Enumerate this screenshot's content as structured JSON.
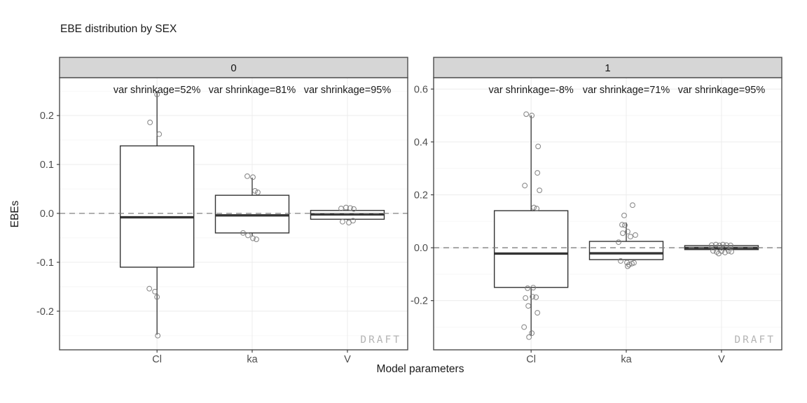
{
  "chart_data": {
    "type": "boxplot",
    "title": "EBE distribution by SEX",
    "xlabel": "Model parameters",
    "ylabel": "EBEs",
    "categories": [
      "Cl",
      "ka",
      "V"
    ],
    "grid": true,
    "legend": "none",
    "watermark": "DRAFT",
    "reference_line": {
      "y": 0,
      "style": "dashed"
    },
    "colors": {
      "strip_bg": "#d6d6d6",
      "panel_border": "#4d4d4d",
      "grid_major": "#ececec",
      "grid_minor": "#f5f5f5",
      "box_stroke": "#333333",
      "point_stroke": "#787878",
      "ref_line": "#808080",
      "tick": "#333333",
      "tick_label": "#4d4d4d",
      "draft": "#b4b4b4"
    },
    "facets": [
      {
        "label": "0",
        "ylim": [
          -0.279,
          0.2775
        ],
        "yticks": [
          {
            "v": 0.2,
            "label": "0.2"
          },
          {
            "v": 0.1,
            "label": "0.1"
          },
          {
            "v": 0.0,
            "label": "0.0"
          },
          {
            "v": -0.1,
            "label": "-0.1"
          },
          {
            "v": -0.2,
            "label": "-0.2"
          }
        ],
        "yminor": [
          0.25,
          0.15,
          0.05,
          -0.05,
          -0.15,
          -0.25
        ],
        "annotations": [
          "var shrinkage=52%",
          "var shrinkage=81%",
          "var shrinkage=95%"
        ],
        "boxes": [
          {
            "category": "Cl",
            "whisker_low": -0.248,
            "q1": -0.11,
            "median": -0.008,
            "q3": 0.138,
            "whisker_high": 0.25,
            "points": [
              {
                "v": 0.243,
                "dx": 0
              },
              {
                "v": 0.186,
                "dx": -10
              },
              {
                "v": 0.162,
                "dx": 3
              },
              {
                "v": -0.154,
                "dx": -11
              },
              {
                "v": -0.16,
                "dx": -3
              },
              {
                "v": -0.171,
                "dx": 0
              },
              {
                "v": -0.25,
                "dx": 1
              }
            ]
          },
          {
            "category": "ka",
            "whisker_low": -0.046,
            "q1": -0.04,
            "median": -0.004,
            "q3": 0.037,
            "whisker_high": 0.073,
            "points": [
              {
                "v": 0.076,
                "dx": -7
              },
              {
                "v": 0.074,
                "dx": 1
              },
              {
                "v": 0.046,
                "dx": 4
              },
              {
                "v": 0.043,
                "dx": 8
              },
              {
                "v": -0.04,
                "dx": -13
              },
              {
                "v": -0.045,
                "dx": -6
              },
              {
                "v": -0.051,
                "dx": 1
              },
              {
                "v": -0.053,
                "dx": 6
              }
            ]
          },
          {
            "category": "V",
            "whisker_low": -0.014,
            "q1": -0.012,
            "median": -0.002,
            "q3": 0.006,
            "whisker_high": 0.008,
            "points": [
              {
                "v": 0.01,
                "dx": -9
              },
              {
                "v": 0.012,
                "dx": -2
              },
              {
                "v": 0.011,
                "dx": 4
              },
              {
                "v": 0.009,
                "dx": 9
              },
              {
                "v": -0.017,
                "dx": -7
              },
              {
                "v": -0.019,
                "dx": 2
              },
              {
                "v": -0.015,
                "dx": 8
              }
            ]
          }
        ]
      },
      {
        "label": "1",
        "ylim": [
          -0.386,
          0.643
        ],
        "yticks": [
          {
            "v": 0.6,
            "label": "0.6"
          },
          {
            "v": 0.4,
            "label": "0.4"
          },
          {
            "v": 0.2,
            "label": "0.2"
          },
          {
            "v": 0.0,
            "label": "0.0"
          },
          {
            "v": -0.2,
            "label": "-0.2"
          }
        ],
        "yminor": [
          0.5,
          0.3,
          0.1,
          -0.1,
          -0.3
        ],
        "annotations": [
          "var shrinkage=-8%",
          "var shrinkage=71%",
          "var shrinkage=95%"
        ],
        "boxes": [
          {
            "category": "Cl",
            "whisker_low": -0.333,
            "q1": -0.15,
            "median": -0.022,
            "q3": 0.14,
            "whisker_high": 0.5,
            "points": [
              {
                "v": 0.505,
                "dx": -7
              },
              {
                "v": 0.5,
                "dx": 1
              },
              {
                "v": 0.383,
                "dx": 10
              },
              {
                "v": 0.283,
                "dx": 9
              },
              {
                "v": 0.235,
                "dx": -9
              },
              {
                "v": 0.217,
                "dx": 12
              },
              {
                "v": 0.152,
                "dx": 4
              },
              {
                "v": 0.148,
                "dx": 8
              },
              {
                "v": -0.153,
                "dx": -5
              },
              {
                "v": -0.151,
                "dx": 3
              },
              {
                "v": -0.185,
                "dx": 2
              },
              {
                "v": -0.187,
                "dx": 7
              },
              {
                "v": -0.19,
                "dx": -8
              },
              {
                "v": -0.22,
                "dx": -4
              },
              {
                "v": -0.246,
                "dx": 9
              },
              {
                "v": -0.3,
                "dx": -10
              },
              {
                "v": -0.323,
                "dx": 1
              },
              {
                "v": -0.338,
                "dx": -3
              }
            ]
          },
          {
            "category": "ka",
            "whisker_low": -0.048,
            "q1": -0.045,
            "median": -0.021,
            "q3": 0.024,
            "whisker_high": 0.095,
            "points": [
              {
                "v": 0.161,
                "dx": 9
              },
              {
                "v": 0.122,
                "dx": -3
              },
              {
                "v": 0.087,
                "dx": -6
              },
              {
                "v": 0.085,
                "dx": -2
              },
              {
                "v": 0.061,
                "dx": 2
              },
              {
                "v": 0.055,
                "dx": -5
              },
              {
                "v": 0.048,
                "dx": 13
              },
              {
                "v": 0.042,
                "dx": 6
              },
              {
                "v": 0.021,
                "dx": -11
              },
              {
                "v": -0.05,
                "dx": -8
              },
              {
                "v": -0.056,
                "dx": 1
              },
              {
                "v": -0.06,
                "dx": 8
              },
              {
                "v": -0.064,
                "dx": 4
              },
              {
                "v": -0.057,
                "dx": 11
              },
              {
                "v": -0.07,
                "dx": 2
              }
            ]
          },
          {
            "category": "V",
            "whisker_low": -0.01,
            "q1": -0.007,
            "median": -0.001,
            "q3": 0.008,
            "whisker_high": 0.012,
            "points": [
              {
                "v": 0.01,
                "dx": -14
              },
              {
                "v": 0.012,
                "dx": -8
              },
              {
                "v": 0.009,
                "dx": -3
              },
              {
                "v": 0.012,
                "dx": 2
              },
              {
                "v": 0.01,
                "dx": 7
              },
              {
                "v": 0.009,
                "dx": 13
              },
              {
                "v": -0.012,
                "dx": -12
              },
              {
                "v": -0.016,
                "dx": -7
              },
              {
                "v": -0.022,
                "dx": -4
              },
              {
                "v": -0.013,
                "dx": 0
              },
              {
                "v": -0.018,
                "dx": 5
              },
              {
                "v": -0.012,
                "dx": 10
              },
              {
                "v": -0.015,
                "dx": 14
              }
            ]
          }
        ]
      }
    ]
  }
}
